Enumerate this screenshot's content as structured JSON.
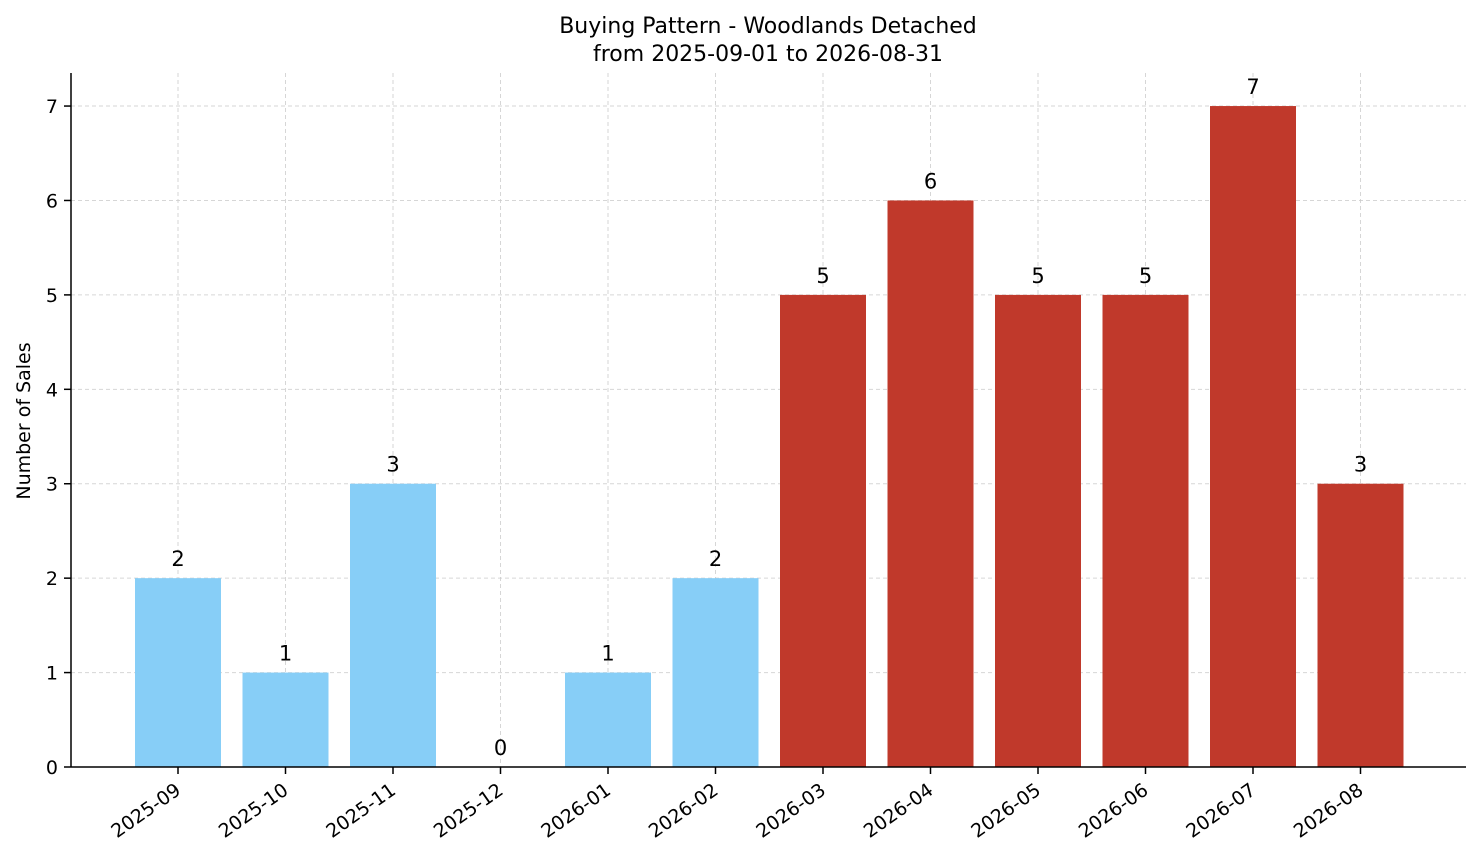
{
  "chart_data": {
    "type": "bar",
    "title": "Buying Pattern - Woodlands Detached",
    "subtitle": "from 2025-09-01 to 2026-08-31",
    "xlabel": "",
    "ylabel": "Number of Sales",
    "ylim": [
      0,
      7.35
    ],
    "yticks": [
      0,
      1,
      2,
      3,
      4,
      5,
      6,
      7
    ],
    "grid": true,
    "categories": [
      "2025-09",
      "2025-10",
      "2025-11",
      "2025-12",
      "2026-01",
      "2026-02",
      "2026-03",
      "2026-04",
      "2026-05",
      "2026-06",
      "2026-07",
      "2026-08"
    ],
    "values": [
      2,
      1,
      3,
      0,
      1,
      2,
      5,
      6,
      5,
      5,
      7,
      3
    ],
    "bar_colors": [
      "#87CEF7",
      "#87CEF7",
      "#87CEF7",
      "#87CEF7",
      "#87CEF7",
      "#87CEF7",
      "#C0392B",
      "#C0392B",
      "#C0392B",
      "#C0392B",
      "#C0392B",
      "#C0392B"
    ],
    "data_labels": [
      "2",
      "1",
      "3",
      "0",
      "1",
      "2",
      "5",
      "6",
      "5",
      "5",
      "7",
      "3"
    ]
  }
}
